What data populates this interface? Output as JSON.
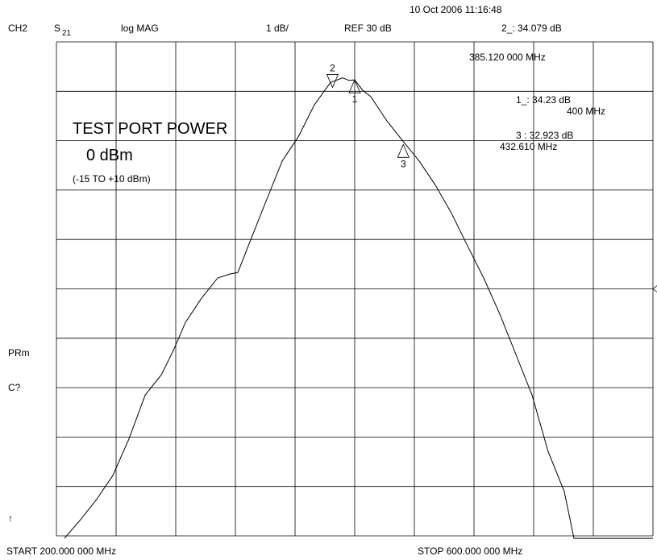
{
  "chart_data": {
    "type": "line",
    "channel": "CH2",
    "parameter": "S",
    "parameter_sub": "21",
    "format": "log MAG",
    "scale": "1 dB/",
    "reference": "REF 30 dB",
    "reference_level": 30,
    "timestamp": "10 Oct 2006  11:16:48",
    "active_readout": "2_: 34.079 dB",
    "active_freq": "385.120 000 MHz",
    "readouts": [
      {
        "value": "1_: 34.23  dB",
        "freq": "400 MHz"
      },
      {
        "value": "3 : 32.923 dB",
        "freq": "432.610 MHz"
      }
    ],
    "annotation_title": "TEST PORT POWER",
    "annotation_value": "0 dBm",
    "annotation_range": "(-15 TO +10 dBm)",
    "side_labels": [
      "PRm",
      "C?",
      "↑"
    ],
    "start": "START  200.000 000 MHz",
    "stop": "STOP  600.000 000 MHz",
    "xlim": [
      200,
      600
    ],
    "ylim": [
      25,
      35
    ],
    "xticks": [
      200,
      240,
      280,
      320,
      360,
      400,
      440,
      480,
      520,
      560,
      600
    ],
    "yticks": [
      25,
      26,
      27,
      28,
      29,
      30,
      31,
      32,
      33,
      34,
      35
    ],
    "grid": true,
    "color": "#000000",
    "x": [
      205.4,
      216.2,
      227.0,
      237.8,
      248.6,
      259.5,
      270.3,
      278.4,
      286.5,
      297.3,
      308.1,
      316.2,
      321.6,
      329.7,
      340.5,
      351.4,
      362.2,
      373.0,
      383.8,
      391.9,
      396.2,
      400,
      405.4,
      410.8,
      421.6,
      432.4,
      443.2,
      454.1,
      464.9,
      475.7,
      486.5,
      497.3,
      508.1,
      518.9,
      529.7,
      540.5,
      547.0,
      600
    ],
    "values": [
      24.95,
      25.33,
      25.74,
      26.22,
      26.96,
      27.85,
      28.26,
      28.75,
      29.32,
      29.81,
      30.22,
      30.3,
      30.33,
      30.95,
      31.77,
      32.59,
      33.08,
      33.73,
      34.18,
      34.27,
      34.22,
      34.23,
      34.02,
      33.89,
      33.4,
      32.99,
      32.59,
      32.1,
      31.53,
      30.87,
      30.22,
      29.49,
      28.67,
      27.85,
      26.71,
      25.9,
      24.95,
      24.95
    ],
    "markers": [
      {
        "label": "1",
        "x": 400,
        "value": 34.23
      },
      {
        "label": "2",
        "x": 385.12,
        "value": 34.079
      },
      {
        "label": "3",
        "x": 432.61,
        "value": 32.923
      }
    ]
  }
}
